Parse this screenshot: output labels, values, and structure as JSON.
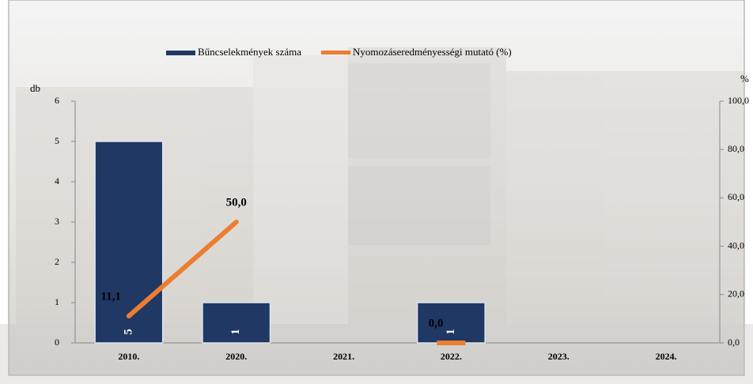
{
  "chart_data": {
    "type": "bar-line",
    "categories": [
      "2010.",
      "2020.",
      "2021.",
      "2022.",
      "2023.",
      "2024."
    ],
    "y_label": "db",
    "y2_label": "%",
    "ylim": [
      0,
      6
    ],
    "yticks": [
      0,
      1,
      2,
      3,
      4,
      5,
      6
    ],
    "y2lim": [
      0,
      100
    ],
    "y2ticks": [
      {
        "value": 0,
        "label": "0,0"
      },
      {
        "value": 20,
        "label": "20,0"
      },
      {
        "value": 40,
        "label": "40,0"
      },
      {
        "value": 60,
        "label": "60,0"
      },
      {
        "value": 80,
        "label": "80,0"
      },
      {
        "value": 100,
        "label": "100,0"
      }
    ],
    "legend": "top",
    "series": [
      {
        "name": "Bűncselekmények száma",
        "type": "bar",
        "color": "#1f3864",
        "values": [
          5,
          1,
          null,
          1,
          null,
          null
        ]
      },
      {
        "name": "Nyomozáseredményességi mutató (%)",
        "type": "line",
        "axis": "y2",
        "color": "#ed7d31",
        "values": [
          11.1,
          50.0,
          null,
          0.0,
          null,
          null
        ],
        "value_labels": [
          "11,1",
          "50,0",
          null,
          "0,0",
          null,
          null
        ]
      }
    ]
  }
}
